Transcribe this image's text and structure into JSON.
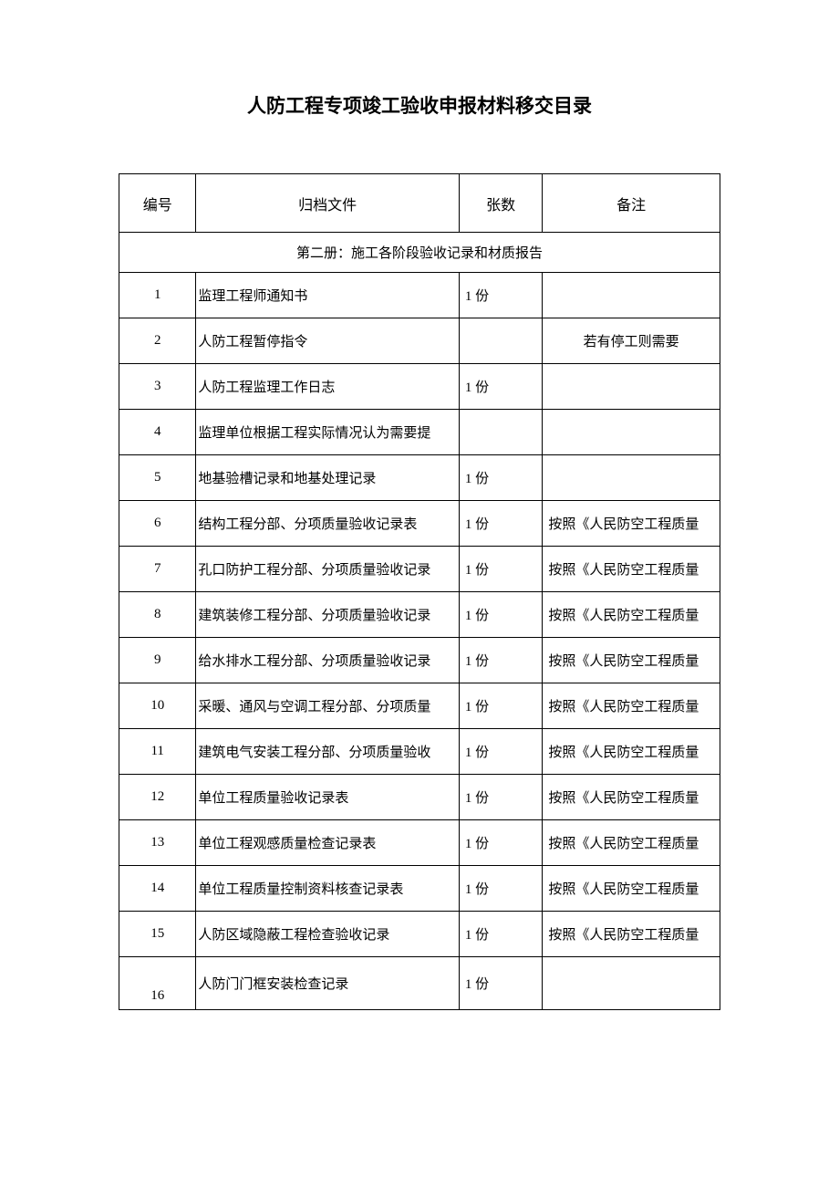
{
  "title": "人防工程专项竣工验收申报材料移交目录",
  "columns": {
    "num": "编号",
    "file": "归档文件",
    "count": "张数",
    "note": "备注"
  },
  "section_header": "第二册：施工各阶段验收记录和材质报告",
  "rows": [
    {
      "num": "1",
      "file": "监理工程师通知书",
      "count": "1 份",
      "note": ""
    },
    {
      "num": "2",
      "file": "人防工程暂停指令",
      "count": "",
      "note": "若有停工则需要",
      "note_centered": true
    },
    {
      "num": "3",
      "file": "人防工程监理工作日志",
      "count": "1 份",
      "note": ""
    },
    {
      "num": "4",
      "file": "监理单位根据工程实际情况认为需要提",
      "count": "",
      "note": ""
    },
    {
      "num": "5",
      "file": "地基验槽记录和地基处理记录",
      "count": "1 份",
      "note": ""
    },
    {
      "num": "6",
      "file": "结构工程分部、分项质量验收记录表",
      "count": "1 份",
      "note": "按照《人民防空工程质量"
    },
    {
      "num": "7",
      "file": "孔口防护工程分部、分项质量验收记录",
      "count": "1 份",
      "note": "按照《人民防空工程质量"
    },
    {
      "num": "8",
      "file": "建筑装修工程分部、分项质量验收记录",
      "count": "1 份",
      "note": "按照《人民防空工程质量"
    },
    {
      "num": "9",
      "file": "给水排水工程分部、分项质量验收记录",
      "count": "1 份",
      "note": "按照《人民防空工程质量"
    },
    {
      "num": "10",
      "file": "采暖、通风与空调工程分部、分项质量",
      "count": "1 份",
      "note": "按照《人民防空工程质量"
    },
    {
      "num": "11",
      "file": "建筑电气安装工程分部、分项质量验收",
      "count": "1 份",
      "note": "按照《人民防空工程质量"
    },
    {
      "num": "12",
      "file": "单位工程质量验收记录表",
      "count": "1 份",
      "note": "按照《人民防空工程质量"
    },
    {
      "num": "13",
      "file": "单位工程观感质量检查记录表",
      "count": "1 份",
      "note": "按照《人民防空工程质量"
    },
    {
      "num": "14",
      "file": "单位工程质量控制资料核查记录表",
      "count": "1 份",
      "note": "按照《人民防空工程质量"
    },
    {
      "num": "15",
      "file": "人防区域隐蔽工程检查验收记录",
      "count": "1 份",
      "note": "按照《人民防空工程质量"
    },
    {
      "num": "16",
      "file": "人防门门框安装检查记录",
      "count": "1 份",
      "note": ""
    }
  ]
}
